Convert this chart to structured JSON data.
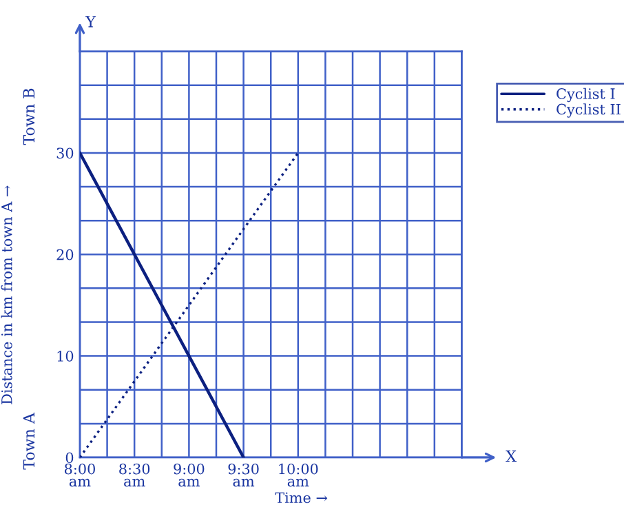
{
  "chart_data": {
    "type": "line",
    "xlabel": "Time →",
    "ylabel": "Distance in km from town A →",
    "annotations": [
      "Y",
      "X",
      "Town B",
      "Town A"
    ],
    "series": [
      {
        "name": "Cyclist I",
        "color": "#0c2080",
        "x": [
          8,
          9.5
        ],
        "values": [
          30,
          0
        ],
        "line_style": "solid"
      },
      {
        "name": "Cyclist II",
        "color": "#0c2080",
        "x": [
          8,
          10
        ],
        "values": [
          0,
          30
        ],
        "line_style": "dotted"
      }
    ],
    "xlim": [
      8,
      11.5
    ],
    "xticks": [
      {
        "value": 8,
        "label": "8:00\nam"
      },
      {
        "value": 8.25,
        "label": null
      },
      {
        "value": 8.5,
        "label": "8:30\nam"
      },
      {
        "value": 8.75,
        "label": null
      },
      {
        "value": 9,
        "label": "9:00\nam"
      },
      {
        "value": 9.25,
        "label": null
      },
      {
        "value": 9.5,
        "label": "9:30\nam"
      },
      {
        "value": 9.75,
        "label": null
      },
      {
        "value": 10,
        "label": "10:00\nam"
      },
      {
        "value": 10.25,
        "label": null
      },
      {
        "value": 10.5,
        "label": null
      },
      {
        "value": 10.75,
        "label": null
      },
      {
        "value": 11,
        "label": null
      },
      {
        "value": 11.25,
        "label": null
      },
      {
        "value": 11.5,
        "label": null
      }
    ],
    "ylim": [
      0,
      40
    ],
    "yticks": [
      0,
      {
        "value": 3.33,
        "label": null
      },
      {
        "value": 6.67,
        "label": null
      },
      10,
      {
        "value": 13.33,
        "label": null
      },
      {
        "value": 16.67,
        "label": null
      },
      20,
      {
        "value": 23.33,
        "label": null
      },
      {
        "value": 26.67,
        "label": null
      },
      30,
      {
        "value": 33.33,
        "label": null
      },
      {
        "value": 36.67,
        "label": null
      },
      {
        "value": 40,
        "label": null
      }
    ],
    "grid": true,
    "legend": "right"
  }
}
